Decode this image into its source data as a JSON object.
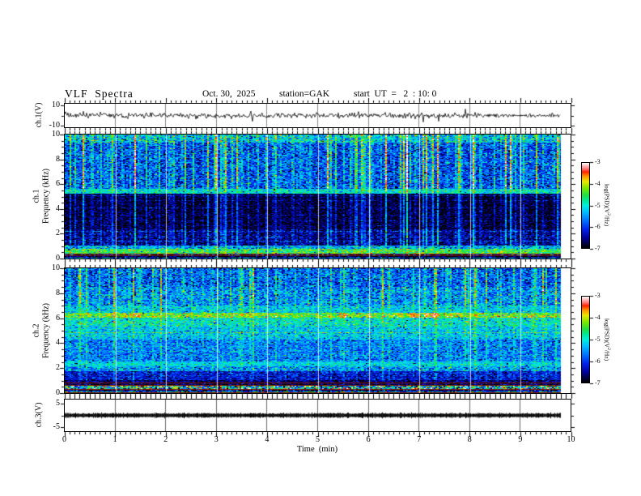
{
  "title": {
    "main": "VLF  Spectra",
    "date": "Oct. 30,  2025",
    "station": "station=GAK",
    "start_ut": "start  UT  =   2  : 10: 0"
  },
  "xaxis": {
    "label": "Time  (min)",
    "tick_labels": [
      "0",
      "1",
      "2",
      "3",
      "4",
      "5",
      "6",
      "7",
      "8",
      "9",
      "10"
    ],
    "tick_values": [
      0,
      1,
      2,
      3,
      4,
      5,
      6,
      7,
      8,
      9,
      10
    ],
    "minor_step": 0.1,
    "range": [
      0,
      10
    ],
    "data_end": 9.8
  },
  "panels": [
    {
      "name": "ch1-waveform",
      "type": "line",
      "ylabel": "ch.1(V)",
      "ytick_labels": [
        "10",
        "-10"
      ],
      "ytick_values": [
        10,
        -10
      ],
      "ylim": [
        -12,
        12
      ]
    },
    {
      "name": "ch1-spectrogram",
      "type": "heatmap",
      "ylabel1": "ch.1",
      "ylabel2": "Frequency  (kHz)",
      "ytick_labels": [
        "0",
        "2",
        "4",
        "6",
        "8",
        "10"
      ],
      "ytick_values": [
        0,
        2,
        4,
        6,
        8,
        10
      ],
      "ylim": [
        0,
        10
      ]
    },
    {
      "name": "ch2-spectrogram",
      "type": "heatmap",
      "ylabel1": "ch.2",
      "ylabel2": "Frequency  (kHz)",
      "ytick_labels": [
        "0",
        "2",
        "4",
        "6",
        "8",
        "10"
      ],
      "ytick_values": [
        0,
        2,
        4,
        6,
        8,
        10
      ],
      "ylim": [
        0,
        10
      ]
    },
    {
      "name": "ch3-waveform",
      "type": "line",
      "ylabel": "ch.3(V)",
      "ytick_labels": [
        "5",
        "-5"
      ],
      "ytick_values": [
        5,
        -5
      ],
      "ylim": [
        -6.8,
        6.8
      ]
    }
  ],
  "colorbar": {
    "label_pre": "log(PSD)(V",
    "label_sup": "2",
    "label_post": "/Hz)",
    "tick_labels": [
      "-3",
      "-4",
      "-5",
      "-6",
      "-7"
    ],
    "tick_values": [
      -3,
      -4,
      -5,
      -6,
      -7
    ],
    "range": [
      -7,
      -3
    ]
  },
  "colormap": [
    [
      0.0,
      "#000000"
    ],
    [
      0.05,
      "#00003a"
    ],
    [
      0.12,
      "#000099"
    ],
    [
      0.22,
      "#0022ee"
    ],
    [
      0.33,
      "#0077ff"
    ],
    [
      0.42,
      "#00bbff"
    ],
    [
      0.5,
      "#00eedd"
    ],
    [
      0.56,
      "#00e897"
    ],
    [
      0.62,
      "#22dd44"
    ],
    [
      0.7,
      "#77e800"
    ],
    [
      0.78,
      "#e8e800"
    ],
    [
      0.84,
      "#ff9900"
    ],
    [
      0.895,
      "#ff2200"
    ],
    [
      0.93,
      "#ff7777"
    ],
    [
      0.965,
      "#ffbbbb"
    ],
    [
      1.0,
      "#ffffff"
    ]
  ],
  "chart_data": [
    {
      "id": "ch1_waveform",
      "type": "line",
      "panel": "ch1-waveform",
      "title": "",
      "xlabel": "Time (min)",
      "ylabel": "ch.1(V)",
      "ylim": [
        -12,
        12
      ],
      "x_range": [
        0,
        9.8
      ],
      "baseline_v": 0,
      "noise_v": 1.25,
      "spike_prob": 0.012,
      "spike_v": 6,
      "color": "#000000",
      "seed": 11
    },
    {
      "id": "ch1_spectrogram",
      "type": "heatmap",
      "panel": "ch1-spectrogram",
      "ylabel": "ch.1 Frequency (kHz)",
      "ylim": [
        0,
        10
      ],
      "x_range": [
        0,
        9.8
      ],
      "value_range": [
        -7,
        -3
      ],
      "seed": 101,
      "streak_prob": 0.13,
      "hot_prob": 0.013,
      "bands": [
        {
          "f": [
            9.4,
            10.0
          ],
          "base": -5.3,
          "noise": 0.55,
          "streak": 1.1
        },
        {
          "f": [
            5.6,
            9.4
          ],
          "base": -5.95,
          "noise": 0.5,
          "streak": 1.5
        },
        {
          "f": [
            5.25,
            5.6
          ],
          "base": -5.1,
          "noise": 0.35,
          "streak": 0.5
        },
        {
          "f": [
            2.35,
            5.25
          ],
          "base": -6.85,
          "noise": 0.25,
          "streak": 0.85
        },
        {
          "f": [
            1.05,
            2.35
          ],
          "base": -6.6,
          "noise": 0.35,
          "streak": 0.9
        },
        {
          "f": [
            0.78,
            1.05
          ],
          "base": -5.4,
          "noise": 0.5,
          "streak": 0.3
        },
        {
          "f": [
            0.3,
            0.78
          ],
          "base": -4.55,
          "noise": 0.4,
          "streak": 0.15
        },
        {
          "f": [
            0.16,
            0.3
          ],
          "base": -6.4,
          "noise": 0.8,
          "streak": 0.1
        },
        {
          "f": [
            0.06,
            0.16
          ],
          "base": -6.8,
          "noise": 0.4,
          "streak": 0.1
        },
        {
          "f": [
            0.0,
            0.06
          ],
          "base": -5.6,
          "noise": 0.6,
          "streak": 0.1
        }
      ],
      "hlines": [
        {
          "f": 5.7,
          "boost": 0.4,
          "prob": 0.4
        },
        {
          "f": 5.45,
          "boost": 0.5,
          "prob": 0.5
        },
        {
          "f": 5.05,
          "boost": 0.7,
          "prob": 0.5
        },
        {
          "f": 4.65,
          "boost": 0.6,
          "prob": 0.4
        },
        {
          "f": 4.1,
          "boost": 0.6,
          "prob": 0.4
        },
        {
          "f": 3.5,
          "boost": 0.5,
          "prob": 0.35
        },
        {
          "f": 3.05,
          "boost": 0.6,
          "prob": 0.4
        },
        {
          "f": 2.6,
          "boost": 0.5,
          "prob": 0.35
        },
        {
          "f": 2.15,
          "boost": 0.7,
          "prob": 0.5
        },
        {
          "f": 1.7,
          "boost": 0.6,
          "prob": 0.4
        },
        {
          "f": 1.35,
          "boost": 0.7,
          "prob": 0.5
        }
      ],
      "red_lines": [
        {
          "f": 0.31,
          "color": "#8d1a00"
        },
        {
          "f": 0.2,
          "color": "#7a1500"
        }
      ]
    },
    {
      "id": "ch2_spectrogram",
      "type": "heatmap",
      "panel": "ch2-spectrogram",
      "ylabel": "ch.2 Frequency (kHz)",
      "ylim": [
        0,
        10
      ],
      "x_range": [
        0,
        9.8
      ],
      "value_range": [
        -7,
        -3
      ],
      "seed": 202,
      "streak_prob": 0.11,
      "hot_prob": 0.006,
      "bands": [
        {
          "f": [
            8.5,
            10.0
          ],
          "base": -5.85,
          "noise": 0.5,
          "streak": 1.1
        },
        {
          "f": [
            7.0,
            8.5
          ],
          "base": -5.6,
          "noise": 0.5,
          "streak": 1.0
        },
        {
          "f": [
            6.45,
            7.0
          ],
          "base": -5.2,
          "noise": 0.4,
          "streak": 0.5
        },
        {
          "f": [
            6.02,
            6.45
          ],
          "base": -4.3,
          "noise": 0.4,
          "streak": 0.25,
          "blob": true
        },
        {
          "f": [
            5.3,
            6.02
          ],
          "base": -5.0,
          "noise": 0.4,
          "streak": 0.4
        },
        {
          "f": [
            4.3,
            5.3
          ],
          "base": -5.3,
          "noise": 0.35,
          "streak": 0.4
        },
        {
          "f": [
            2.5,
            4.3
          ],
          "base": -5.7,
          "noise": 0.4,
          "streak": 0.5
        },
        {
          "f": [
            2.15,
            2.5
          ],
          "base": -5.2,
          "noise": 0.3,
          "streak": 0.3
        },
        {
          "f": [
            1.75,
            2.15
          ],
          "base": -5.5,
          "noise": 0.5,
          "streak": 0.3
        },
        {
          "f": [
            1.0,
            1.75
          ],
          "base": -6.3,
          "noise": 0.35,
          "streak": 0.35
        },
        {
          "f": [
            0.6,
            1.0
          ],
          "base": -6.7,
          "noise": 0.3,
          "streak": 0.2
        },
        {
          "f": [
            0.28,
            0.6
          ],
          "base": -5.1,
          "noise": 1.2,
          "streak": 0.1
        },
        {
          "f": [
            0.12,
            0.28
          ],
          "base": -6.6,
          "noise": 0.6,
          "streak": 0.1
        },
        {
          "f": [
            0.04,
            0.12
          ],
          "base": -5.4,
          "noise": 0.8,
          "streak": 0.0
        },
        {
          "f": [
            0.0,
            0.04
          ],
          "base": -6.9,
          "noise": 0.3,
          "streak": 0.0
        }
      ],
      "hlines": [
        {
          "f": 4.85,
          "boost": 0.8,
          "prob": 0.75
        },
        {
          "f": 4.6,
          "boost": 0.5,
          "prob": 0.4
        },
        {
          "f": 5.1,
          "boost": 0.4,
          "prob": 0.35
        },
        {
          "f": 3.95,
          "boost": 0.4,
          "prob": 0.3
        },
        {
          "f": 3.7,
          "boost": 0.45,
          "prob": 0.35
        },
        {
          "f": 3.35,
          "boost": 0.5,
          "prob": 0.4
        },
        {
          "f": 3.0,
          "boost": 0.5,
          "prob": 0.4
        },
        {
          "f": 2.3,
          "boost": 0.4,
          "prob": 0.4
        },
        {
          "f": 1.6,
          "boost": 0.35,
          "prob": 0.3
        },
        {
          "f": 1.35,
          "boost": 0.4,
          "prob": 0.35
        },
        {
          "f": 0.9,
          "boost": 0.35,
          "prob": 0.35
        }
      ],
      "red_lines": [
        {
          "f": 0.78,
          "color": "#8d1a00"
        },
        {
          "f": 0.62,
          "color": "#7a1500"
        },
        {
          "f": 0.25,
          "color": "#8d1a00"
        },
        {
          "f": 0.02,
          "color": "#7a1500"
        }
      ]
    },
    {
      "id": "ch3_waveform",
      "type": "line",
      "panel": "ch3-waveform",
      "title": "",
      "xlabel": "Time (min)",
      "ylabel": "ch.3(V)",
      "ylim": [
        -6.8,
        6.8
      ],
      "x_range": [
        0,
        9.8
      ],
      "baseline_v": 0,
      "thickness_v": 0.6,
      "noise_v": 0.25,
      "color": "#000000",
      "seed": 7
    }
  ]
}
